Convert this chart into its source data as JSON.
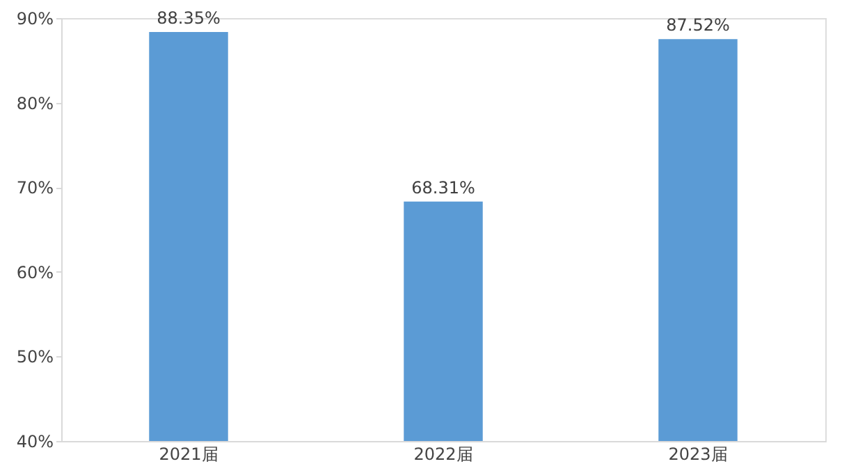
{
  "chart_data": {
    "type": "bar",
    "categories": [
      "2021届",
      "2022届",
      "2023届"
    ],
    "series": [
      {
        "color": "#5b9bd5",
        "values": [
          88.35,
          68.31,
          87.52
        ],
        "value_labels": [
          "88.35%",
          "68.31%",
          "87.52%"
        ]
      }
    ],
    "ylim": [
      40,
      90
    ],
    "yticks": [
      {
        "value": 40,
        "label": "40%"
      },
      {
        "value": 50,
        "label": "50%"
      },
      {
        "value": 60,
        "label": "60%"
      },
      {
        "value": 70,
        "label": "70%"
      },
      {
        "value": 80,
        "label": "80%"
      },
      {
        "value": 90,
        "label": "90%"
      }
    ],
    "grid": false
  }
}
